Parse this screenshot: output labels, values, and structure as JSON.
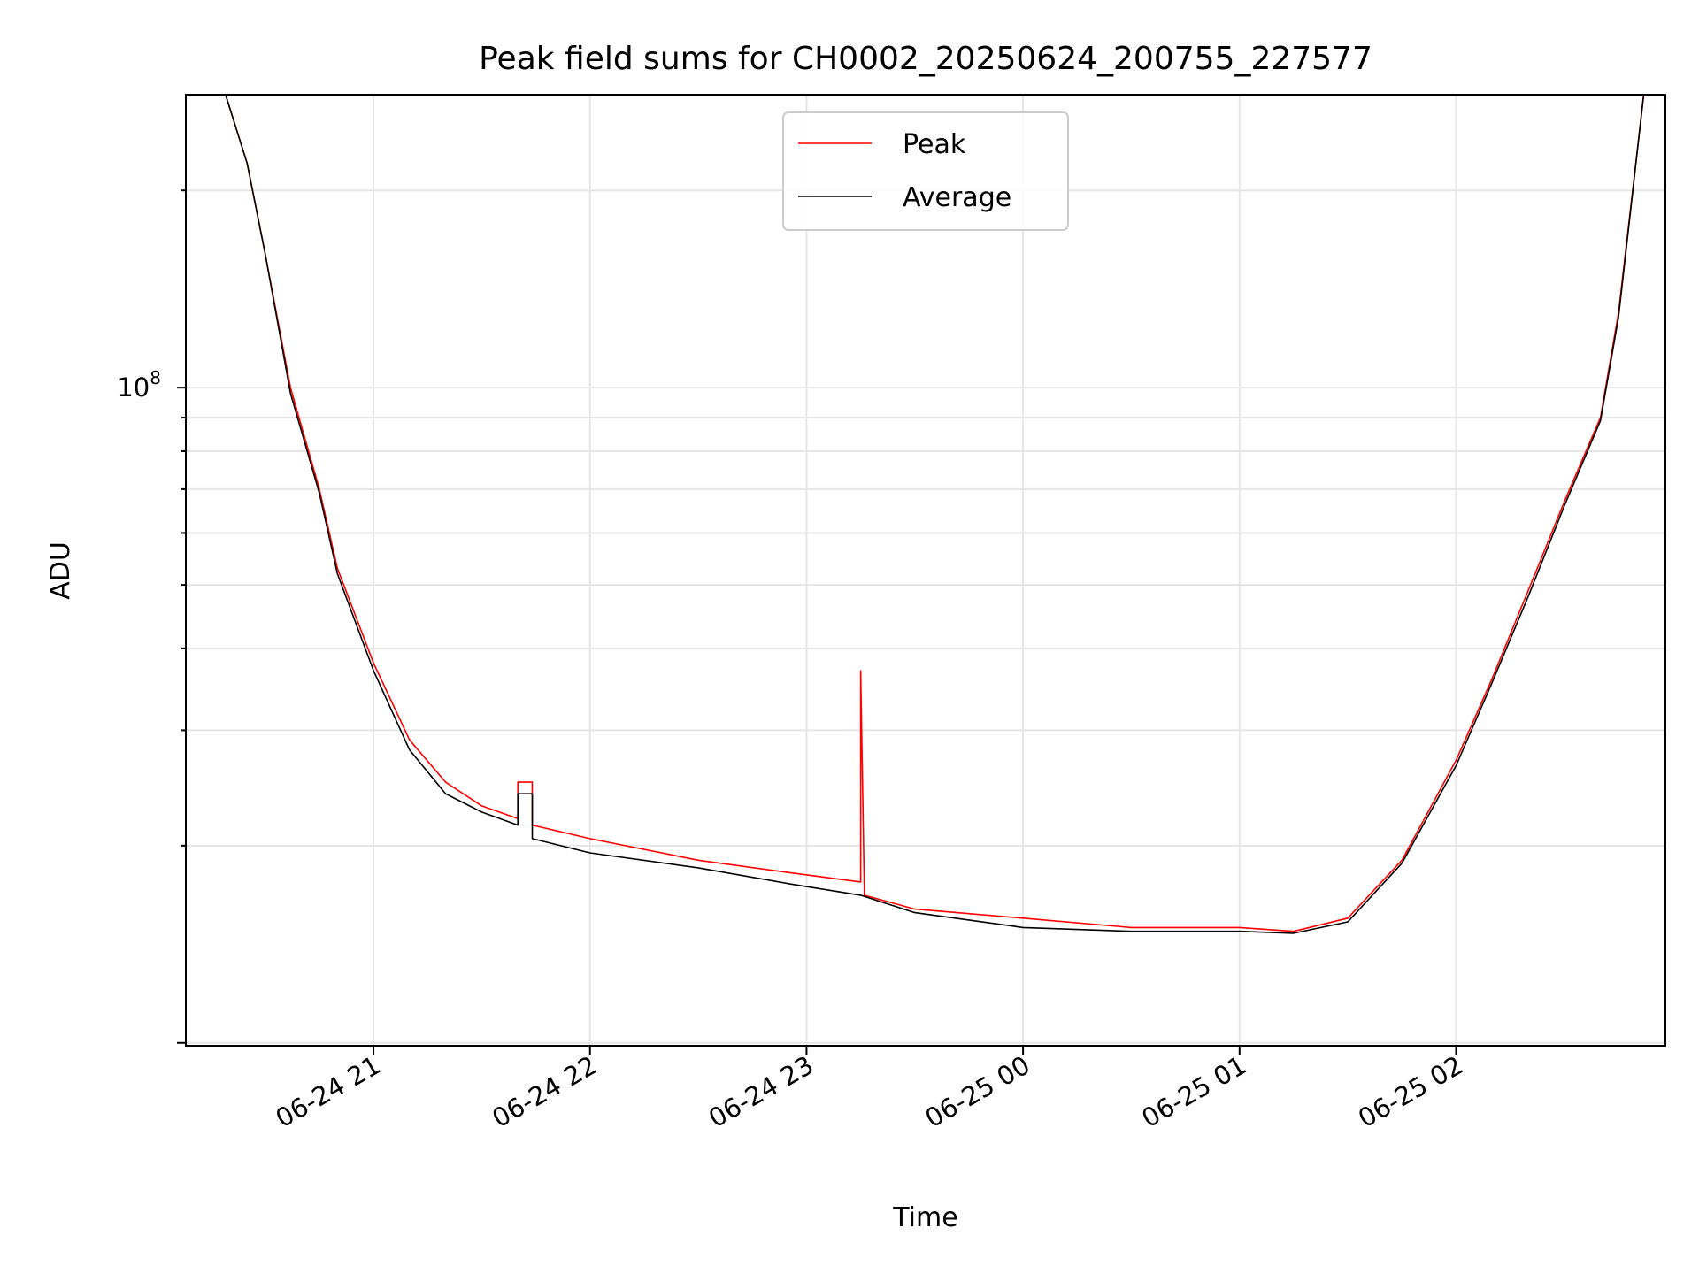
{
  "chart_data": {
    "type": "line",
    "title": "Peak field sums for CH0002_20250624_200755_227577",
    "xlabel": "Time",
    "ylabel": "ADU",
    "yscale": "log",
    "grid": true,
    "legend_position": "top-center",
    "xlim": [
      "2025-06-24 20:08",
      "2025-06-25 02:58"
    ],
    "ylim": [
      9900000.0,
      280000000.0
    ],
    "x_ticks": [
      {
        "t": "2025-06-24 21:00",
        "label": "06-24 21"
      },
      {
        "t": "2025-06-24 22:00",
        "label": "06-24 22"
      },
      {
        "t": "2025-06-24 23:00",
        "label": "06-24 23"
      },
      {
        "t": "2025-06-25 00:00",
        "label": "06-25 00"
      },
      {
        "t": "2025-06-25 01:00",
        "label": "06-25 01"
      },
      {
        "t": "2025-06-25 02:00",
        "label": "06-25 02"
      }
    ],
    "y_major_tick": {
      "value": 100000000,
      "label_base": "10",
      "label_exp": "8"
    },
    "series": [
      {
        "name": "Peak",
        "color": "#ff0000",
        "x": [
          "2025-06-24 20:19",
          "2025-06-24 20:25",
          "2025-06-24 20:30",
          "2025-06-24 20:37",
          "2025-06-24 20:45",
          "2025-06-24 20:50",
          "2025-06-24 21:00",
          "2025-06-24 21:10",
          "2025-06-24 21:20",
          "2025-06-24 21:30",
          "2025-06-24 21:40",
          "2025-06-24 21:40",
          "2025-06-24 21:44",
          "2025-06-24 21:44",
          "2025-06-24 22:00",
          "2025-06-24 22:30",
          "2025-06-24 22:55",
          "2025-06-24 23:15",
          "2025-06-24 23:15",
          "2025-06-24 23:16",
          "2025-06-24 23:16",
          "2025-06-24 23:30",
          "2025-06-25 00:00",
          "2025-06-25 00:30",
          "2025-06-25 01:00",
          "2025-06-25 01:15",
          "2025-06-25 01:30",
          "2025-06-25 01:45",
          "2025-06-25 02:00",
          "2025-06-25 02:10",
          "2025-06-25 02:20",
          "2025-06-25 02:30",
          "2025-06-25 02:40",
          "2025-06-25 02:45",
          "2025-06-25 02:52"
        ],
        "y": [
          280000000,
          220000000,
          160000000,
          100000000,
          70000000,
          53000000,
          38000000,
          29000000,
          25000000,
          23000000,
          22000000,
          25000000,
          25000000,
          21500000,
          20500000,
          19000000,
          18200000,
          17600000,
          37000000,
          17200000,
          16800000,
          16000000,
          15500000,
          15000000,
          15000000,
          14800000,
          15500000,
          19000000,
          27000000,
          36000000,
          49000000,
          67000000,
          90000000,
          130000000,
          280000000
        ]
      },
      {
        "name": "Average",
        "color": "#000000",
        "x": [
          "2025-06-24 20:19",
          "2025-06-24 20:25",
          "2025-06-24 20:30",
          "2025-06-24 20:37",
          "2025-06-24 20:45",
          "2025-06-24 20:50",
          "2025-06-24 21:00",
          "2025-06-24 21:10",
          "2025-06-24 21:20",
          "2025-06-24 21:30",
          "2025-06-24 21:40",
          "2025-06-24 21:40",
          "2025-06-24 21:44",
          "2025-06-24 21:44",
          "2025-06-24 22:00",
          "2025-06-24 22:30",
          "2025-06-24 22:55",
          "2025-06-24 23:15",
          "2025-06-24 23:30",
          "2025-06-25 00:00",
          "2025-06-25 00:30",
          "2025-06-25 01:00",
          "2025-06-25 01:15",
          "2025-06-25 01:30",
          "2025-06-25 01:45",
          "2025-06-25 02:00",
          "2025-06-25 02:10",
          "2025-06-25 02:20",
          "2025-06-25 02:30",
          "2025-06-25 02:40",
          "2025-06-25 02:45",
          "2025-06-25 02:52"
        ],
        "y": [
          280000000,
          220000000,
          160000000,
          98000000,
          69000000,
          52000000,
          37000000,
          28000000,
          24000000,
          22500000,
          21500000,
          24000000,
          24000000,
          20500000,
          19500000,
          18500000,
          17500000,
          16800000,
          15800000,
          15000000,
          14800000,
          14800000,
          14700000,
          15300000,
          18800000,
          26500000,
          35500000,
          48000000,
          66000000,
          89000000,
          128000000,
          280000000
        ]
      }
    ]
  }
}
